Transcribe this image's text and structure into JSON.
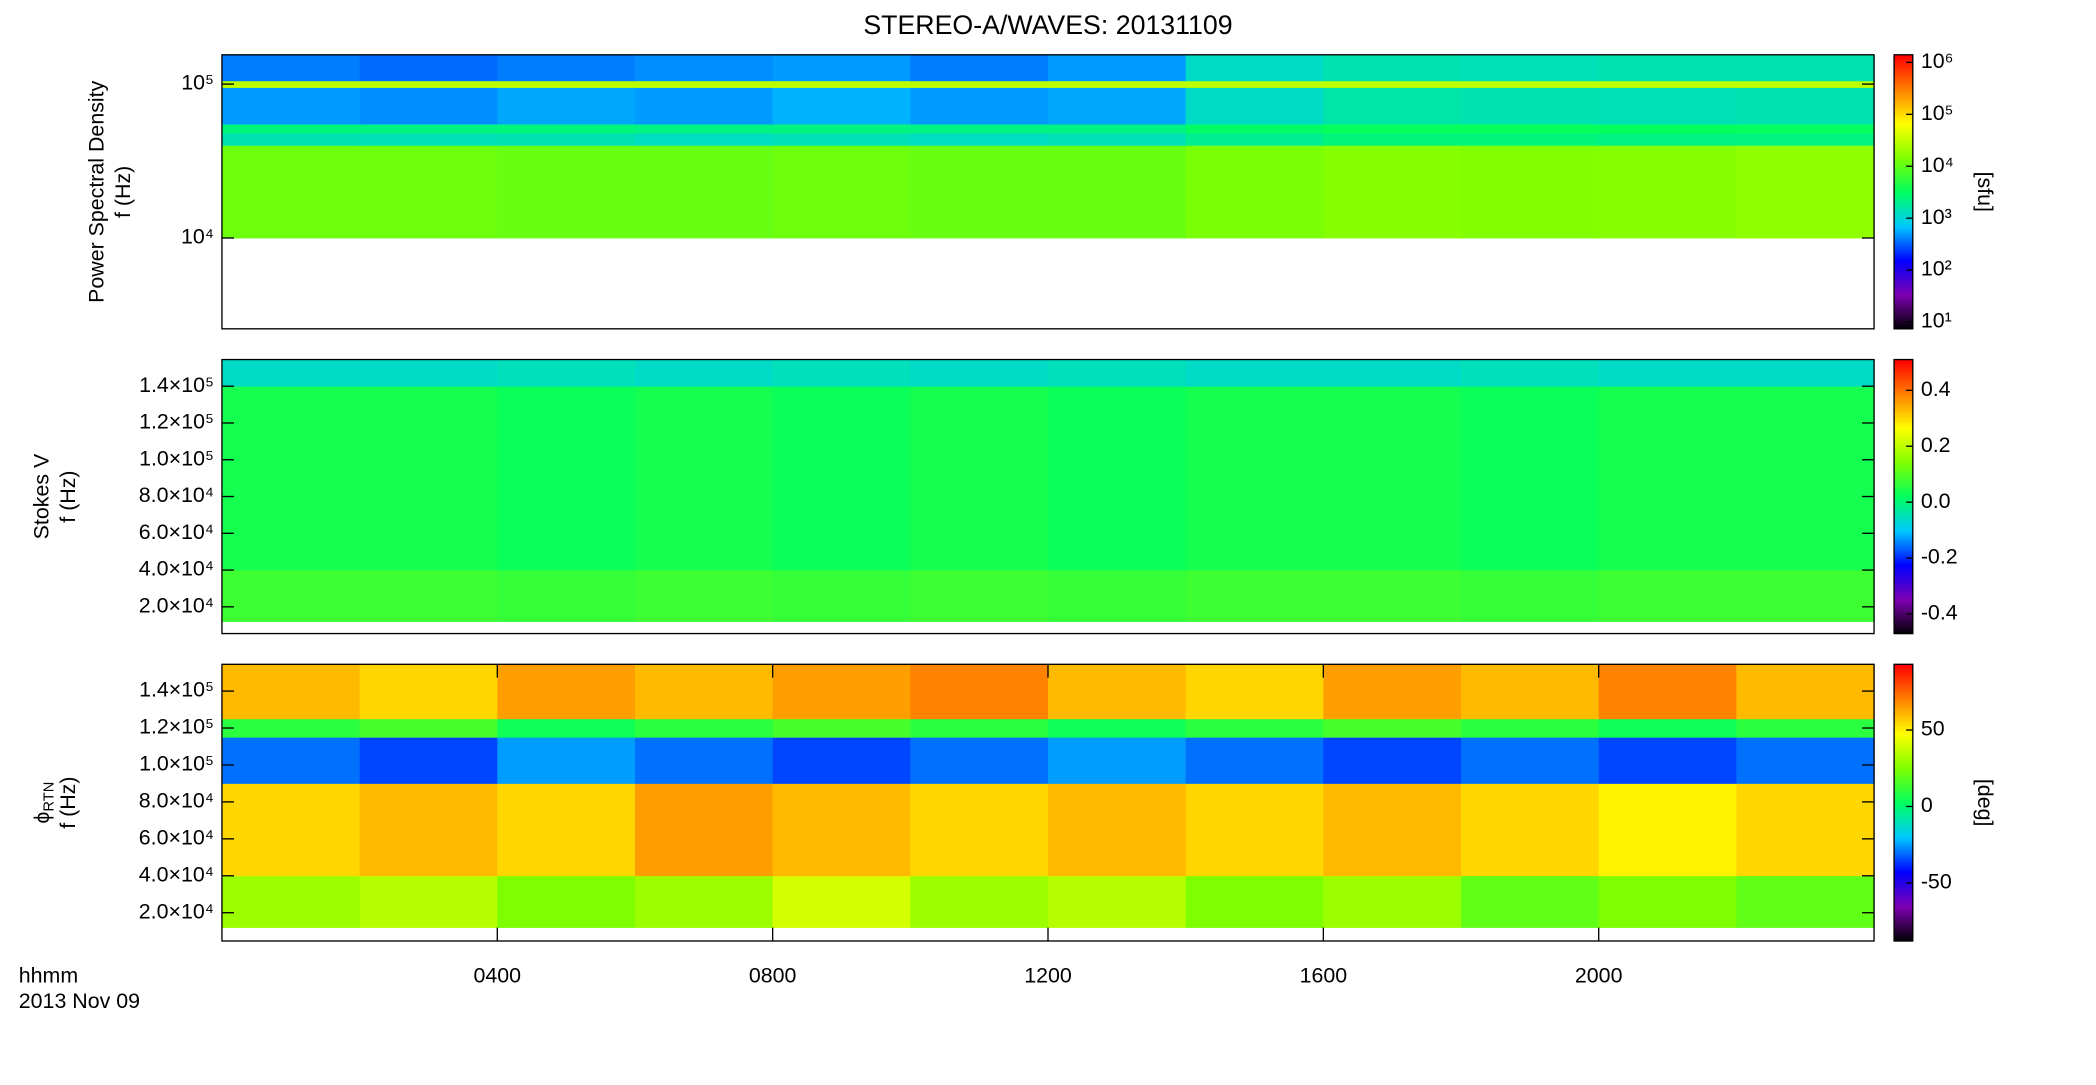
{
  "chart_data": [
    {
      "type": "heatmap",
      "title": "STEREO-A/WAVES: 20131109",
      "ylabel": [
        "Power Spectral Density",
        "f (Hz)"
      ],
      "colorbar_label": "[sfu]",
      "xlim": [
        0,
        24
      ],
      "yscale": "log",
      "ylim": [
        2570,
        155000
      ],
      "yticks": [
        {
          "value": 10000,
          "label": "10⁴"
        },
        {
          "value": 100000,
          "label": "10⁵"
        }
      ],
      "cscale": "log",
      "clim": [
        7.4,
        1400000
      ],
      "cticks": [
        {
          "value": 10,
          "label": "10¹"
        },
        {
          "value": 100,
          "label": "10²"
        },
        {
          "value": 1000,
          "label": "10³"
        },
        {
          "value": 10000,
          "label": "10⁴"
        },
        {
          "value": 100000,
          "label": "10⁵"
        },
        {
          "value": 1000000,
          "label": "10⁶"
        }
      ],
      "colormap": [
        "#000000",
        "#7f00b2",
        "#0000ff",
        "#00c8ff",
        "#00ff60",
        "#7fff00",
        "#ffff00",
        "#ff8000",
        "#ff0000"
      ],
      "x_edges": [
        0,
        2,
        4,
        6,
        8,
        10,
        12,
        14,
        16,
        18,
        20,
        22,
        24
      ],
      "y_edges": [
        10000,
        40000,
        48000,
        55000,
        95000,
        105000,
        155000
      ],
      "z": [
        [
          12000,
          12000,
          11000,
          11000,
          12000,
          11000,
          11000,
          14000,
          16000,
          15000,
          16000,
          18000
        ],
        [
          1500,
          1400,
          1500,
          1300,
          1400,
          1300,
          1400,
          2000,
          2500,
          2500,
          2300,
          2400
        ],
        [
          2500,
          2400,
          2500,
          2300,
          2400,
          2300,
          2300,
          3000,
          3500,
          3500,
          3300,
          3400
        ],
        [
          500,
          450,
          550,
          500,
          600,
          500,
          550,
          1200,
          1600,
          1500,
          1400,
          1500
        ],
        [
          30000,
          30000,
          30000,
          30000,
          30000,
          30000,
          30000,
          30000,
          30000,
          30000,
          30000,
          30000
        ],
        [
          400,
          350,
          400,
          450,
          500,
          400,
          500,
          1200,
          1500,
          1400,
          1500,
          1500
        ]
      ]
    },
    {
      "type": "heatmap",
      "ylabel": [
        "Stokes V",
        "f (Hz)"
      ],
      "xlim": [
        0,
        24
      ],
      "yscale": "linear",
      "ylim": [
        5450,
        154500
      ],
      "yticks": [
        {
          "value": 20000,
          "label": "2.0×10⁴"
        },
        {
          "value": 40000,
          "label": "4.0×10⁴"
        },
        {
          "value": 60000,
          "label": "6.0×10⁴"
        },
        {
          "value": 80000,
          "label": "8.0×10⁴"
        },
        {
          "value": 100000,
          "label": "1.0×10⁵"
        },
        {
          "value": 120000,
          "label": "1.2×10⁵"
        },
        {
          "value": 140000,
          "label": "1.4×10⁵"
        }
      ],
      "cscale": "linear",
      "clim": [
        -0.47,
        0.51
      ],
      "cticks": [
        -0.4,
        -0.2,
        {
          "value": 0,
          "label": "0.0"
        },
        0.2,
        0.4
      ],
      "colormap": [
        "#000000",
        "#7f00b2",
        "#0000ff",
        "#00c8ff",
        "#00ff60",
        "#7fff00",
        "#ffff00",
        "#ff8000",
        "#ff0000"
      ],
      "x_edges": [
        0,
        2,
        4,
        6,
        8,
        10,
        12,
        14,
        16,
        18,
        20,
        22,
        24
      ],
      "y_edges": [
        12000,
        40000,
        140000,
        154500
      ],
      "z": [
        [
          0.08,
          0.08,
          0.07,
          0.08,
          0.07,
          0.08,
          0.07,
          0.08,
          0.08,
          0.07,
          0.08,
          0.08
        ],
        [
          0.04,
          0.04,
          0.03,
          0.04,
          0.03,
          0.04,
          0.03,
          0.04,
          0.04,
          0.03,
          0.04,
          0.04
        ],
        [
          -0.06,
          -0.06,
          -0.05,
          -0.06,
          -0.05,
          -0.06,
          -0.05,
          -0.06,
          -0.06,
          -0.05,
          -0.06,
          -0.06
        ]
      ]
    },
    {
      "type": "heatmap",
      "ylabel": [
        [
          "ϕ",
          "RTN"
        ],
        "f (Hz)"
      ],
      "colorbar_label": "[deg]",
      "xlim": [
        0,
        24
      ],
      "yscale": "linear",
      "ylim": [
        4700,
        154500
      ],
      "yticks": [
        {
          "value": 20000,
          "label": "2.0×10⁴"
        },
        {
          "value": 40000,
          "label": "4.0×10⁴"
        },
        {
          "value": 60000,
          "label": "6.0×10⁴"
        },
        {
          "value": 80000,
          "label": "8.0×10⁴"
        },
        {
          "value": 100000,
          "label": "1.0×10⁵"
        },
        {
          "value": 120000,
          "label": "1.2×10⁵"
        },
        {
          "value": 140000,
          "label": "1.4×10⁵"
        }
      ],
      "xticks": [
        {
          "value": 4,
          "label": "0400"
        },
        {
          "value": 8,
          "label": "0800"
        },
        {
          "value": 12,
          "label": "1200"
        },
        {
          "value": 16,
          "label": "1600"
        },
        {
          "value": 20,
          "label": "2000"
        }
      ],
      "xlabel": "hhmm",
      "date_label": "2013 Nov 09",
      "cscale": "linear",
      "clim": [
        -88,
        93
      ],
      "cticks": [
        -50,
        0,
        50
      ],
      "colormap": [
        "#000000",
        "#7f00b2",
        "#0000ff",
        "#00c8ff",
        "#00ff60",
        "#7fff00",
        "#ffff00",
        "#ff8000",
        "#ff0000"
      ],
      "x_edges": [
        0,
        2,
        4,
        6,
        8,
        10,
        12,
        14,
        16,
        18,
        20,
        22,
        24
      ],
      "y_edges": [
        12000,
        40000,
        90000,
        115000,
        125000,
        154500
      ],
      "z": [
        [
          30,
          35,
          25,
          30,
          40,
          30,
          35,
          25,
          30,
          20,
          25,
          20
        ],
        [
          55,
          60,
          55,
          65,
          60,
          55,
          60,
          55,
          60,
          55,
          50,
          55
        ],
        [
          -30,
          -35,
          -25,
          -30,
          -35,
          -30,
          -25,
          -30,
          -35,
          -30,
          -35,
          -30
        ],
        [
          10,
          15,
          5,
          10,
          15,
          10,
          5,
          10,
          15,
          10,
          5,
          10
        ],
        [
          60,
          55,
          65,
          60,
          65,
          70,
          60,
          55,
          65,
          60,
          70,
          60
        ]
      ]
    }
  ]
}
